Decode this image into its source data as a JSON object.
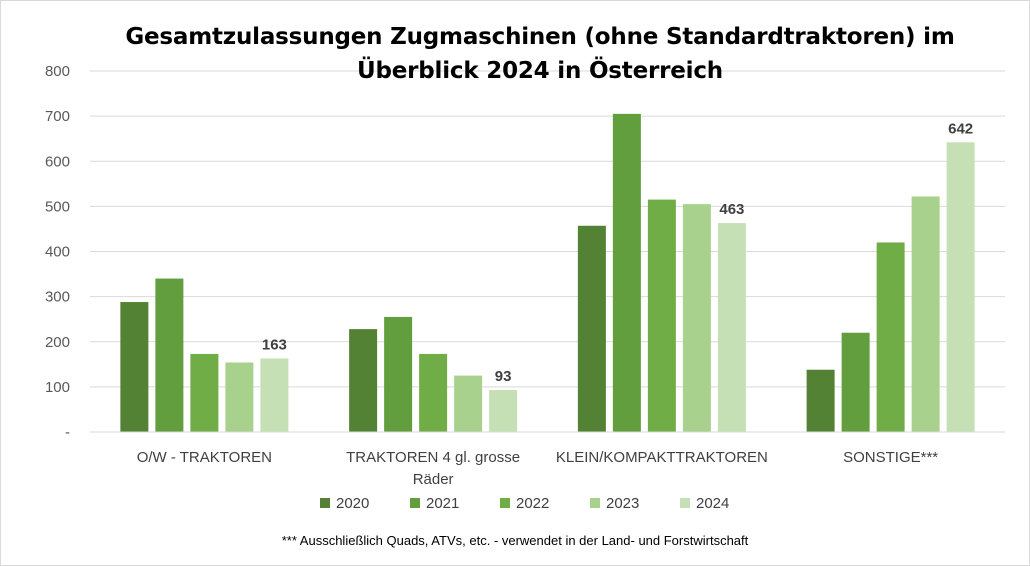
{
  "chart_data": {
    "type": "bar",
    "title_lines": [
      "Gesamtzulassungen Zugmaschinen (ohne Standardtraktoren) im",
      "Überblick 2024 in Österreich"
    ],
    "categories": [
      [
        "O/W - TRAKTOREN"
      ],
      [
        "TRAKTOREN 4 gl. grosse",
        "Räder"
      ],
      [
        "KLEIN/KOMPAKTTRAKTOREN"
      ],
      [
        "SONSTIGE***"
      ]
    ],
    "series": [
      {
        "name": "2020",
        "color": "#548235",
        "values": [
          288,
          228,
          457,
          138
        ]
      },
      {
        "name": "2021",
        "color": "#629d3e",
        "values": [
          340,
          255,
          705,
          220
        ]
      },
      {
        "name": "2022",
        "color": "#70ad47",
        "values": [
          173,
          173,
          515,
          420
        ]
      },
      {
        "name": "2023",
        "color": "#a9d18e",
        "values": [
          154,
          125,
          505,
          522
        ]
      },
      {
        "name": "2024",
        "color": "#c5e0b4",
        "values": [
          163,
          93,
          463,
          642
        ]
      }
    ],
    "data_labels": {
      "series": "2024",
      "values": [
        "163",
        "93",
        "463",
        "642"
      ]
    },
    "ylim": [
      0,
      800
    ],
    "yticks": [
      {
        "value": 0,
        "label": "-"
      },
      {
        "value": 100,
        "label": "100"
      },
      {
        "value": 200,
        "label": "200"
      },
      {
        "value": 300,
        "label": "300"
      },
      {
        "value": 400,
        "label": "400"
      },
      {
        "value": 500,
        "label": "500"
      },
      {
        "value": 600,
        "label": "600"
      },
      {
        "value": 700,
        "label": "700"
      },
      {
        "value": 800,
        "label": "800"
      }
    ],
    "grid": true,
    "legend_position": "bottom",
    "footnote": "*** Ausschließlich Quads, ATVs, etc. - verwendet in der Land- und Forstwirtschaft"
  }
}
